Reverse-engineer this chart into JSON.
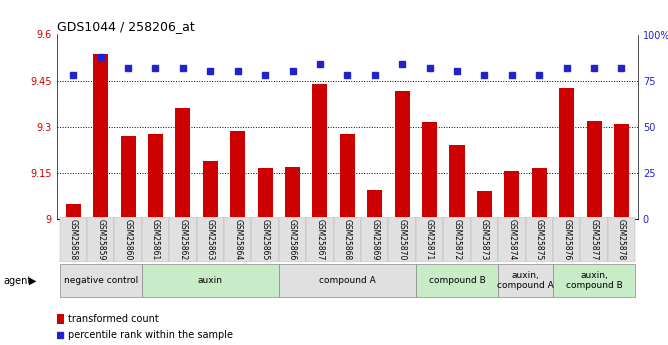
{
  "title": "GDS1044 / 258206_at",
  "categories": [
    "GSM25858",
    "GSM25859",
    "GSM25860",
    "GSM25861",
    "GSM25862",
    "GSM25863",
    "GSM25864",
    "GSM25865",
    "GSM25866",
    "GSM25867",
    "GSM25868",
    "GSM25869",
    "GSM25870",
    "GSM25871",
    "GSM25872",
    "GSM25873",
    "GSM25874",
    "GSM25875",
    "GSM25876",
    "GSM25877",
    "GSM25878"
  ],
  "bar_values": [
    9.05,
    9.535,
    9.27,
    9.275,
    9.36,
    9.19,
    9.285,
    9.165,
    9.17,
    9.44,
    9.275,
    9.095,
    9.415,
    9.315,
    9.24,
    9.09,
    9.155,
    9.165,
    9.425,
    9.32,
    9.31
  ],
  "dot_values": [
    78,
    88,
    82,
    82,
    82,
    80,
    80,
    78,
    80,
    84,
    78,
    78,
    84,
    82,
    80,
    78,
    78,
    78,
    82,
    82,
    82
  ],
  "bar_color": "#cc0000",
  "dot_color": "#2222cc",
  "ylim_left": [
    9.0,
    9.6
  ],
  "ylim_right": [
    0,
    100
  ],
  "yticks_left": [
    9.0,
    9.15,
    9.3,
    9.45,
    9.6
  ],
  "ytick_labels_left": [
    "9",
    "9.15",
    "9.3",
    "9.45",
    "9.6"
  ],
  "yticks_right": [
    0,
    25,
    50,
    75,
    100
  ],
  "ytick_labels_right": [
    "0",
    "25",
    "50",
    "75",
    "100%"
  ],
  "gridlines": [
    9.15,
    9.3,
    9.45
  ],
  "groups": [
    {
      "label": "negative control",
      "start": 0,
      "end": 3,
      "color": "#e0e0e0"
    },
    {
      "label": "auxin",
      "start": 3,
      "end": 8,
      "color": "#c8ecc8"
    },
    {
      "label": "compound A",
      "start": 8,
      "end": 13,
      "color": "#e0e0e0"
    },
    {
      "label": "compound B",
      "start": 13,
      "end": 16,
      "color": "#c8ecc8"
    },
    {
      "label": "auxin,\ncompound A",
      "start": 16,
      "end": 18,
      "color": "#e0e0e0"
    },
    {
      "label": "auxin,\ncompound B",
      "start": 18,
      "end": 21,
      "color": "#c8ecc8"
    }
  ],
  "legend_bar_label": "transformed count",
  "legend_dot_label": "percentile rank within the sample",
  "agent_label": "agent"
}
